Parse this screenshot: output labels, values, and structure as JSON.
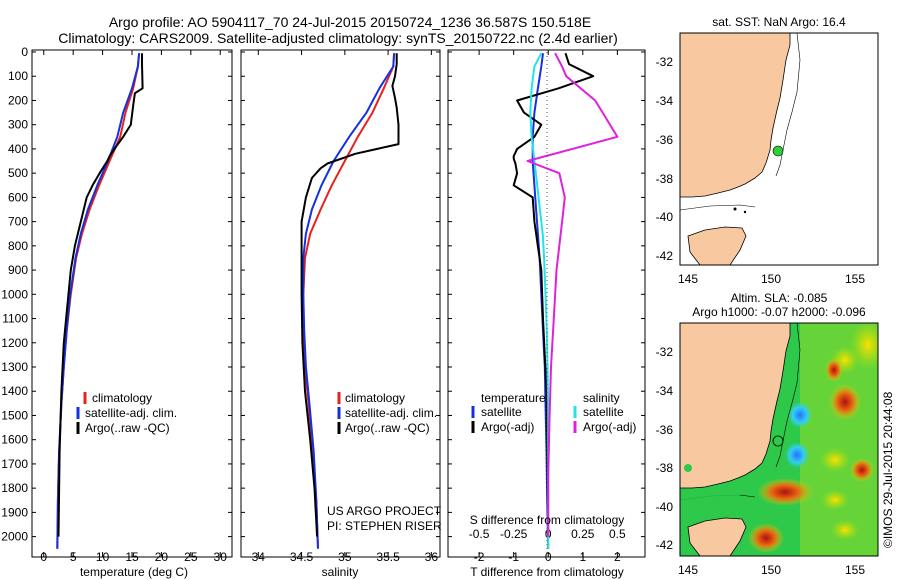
{
  "header": {
    "line1": "Argo profile: AO 5904117_70 24-Jul-2015 20150724_1236 36.587S 150.518E",
    "line2": "Climatology: CARS2009. Satellite-adjusted climatology: synTS_20150722.nc (2.4d earlier)"
  },
  "colors": {
    "climatology": "#e8211b",
    "satellite": "#1530e0",
    "argo": "#000000",
    "sat_salinity": "#22e3e8",
    "argo_salinity": "#e020e0",
    "land": "#f8c9a0"
  },
  "chart_data": [
    {
      "id": "temperature",
      "type": "line",
      "xlabel": "temperature (deg C)",
      "ylabel": "",
      "xlim": [
        -2,
        32
      ],
      "ylim": [
        2080,
        0
      ],
      "xticks": [
        0,
        5,
        10,
        15,
        20,
        25,
        30
      ],
      "yticks": [
        0,
        100,
        200,
        300,
        400,
        500,
        600,
        700,
        800,
        900,
        1000,
        1100,
        1200,
        1300,
        1400,
        1500,
        1600,
        1700,
        1800,
        1900,
        2000
      ],
      "legend": [
        "climatology",
        "satellite-adj. clim.",
        "Argo(..raw -QC)"
      ],
      "series": [
        {
          "name": "climatology",
          "color": "#e8211b",
          "x": [
            16.2,
            16.0,
            15.2,
            13.9,
            13.0,
            11.2,
            9.4,
            7.8,
            6.5,
            5.5,
            4.6,
            3.9,
            3.4,
            3.0,
            2.6,
            2.4,
            2.3
          ],
          "y": [
            5,
            60,
            150,
            250,
            350,
            450,
            550,
            650,
            750,
            850,
            1000,
            1150,
            1300,
            1450,
            1650,
            1850,
            2050
          ]
        },
        {
          "name": "satellite-adj. clim.",
          "color": "#1530e0",
          "x": [
            16.2,
            16.0,
            15.0,
            13.5,
            12.5,
            10.9,
            9.1,
            7.5,
            6.3,
            5.4,
            4.5,
            3.9,
            3.4,
            3.0,
            2.6,
            2.4,
            2.3
          ],
          "y": [
            5,
            60,
            150,
            250,
            350,
            450,
            550,
            650,
            750,
            850,
            1000,
            1150,
            1300,
            1450,
            1650,
            1850,
            2050
          ]
        },
        {
          "name": "Argo(..raw -QC)",
          "color": "#000000",
          "x": [
            16.7,
            16.7,
            16.8,
            15.5,
            15.2,
            14.8,
            13.5,
            12.0,
            11.2,
            10.8,
            9.5,
            8.3,
            7.3,
            6.3,
            5.3,
            4.6,
            4.0,
            3.4,
            3.0,
            2.7,
            2.5
          ],
          "y": [
            5,
            50,
            150,
            170,
            220,
            300,
            350,
            400,
            430,
            450,
            500,
            550,
            600,
            700,
            800,
            900,
            1050,
            1200,
            1400,
            1650,
            2000
          ]
        }
      ]
    },
    {
      "id": "salinity",
      "type": "line",
      "xlabel": "salinity",
      "xlim": [
        33.8,
        36.1
      ],
      "xticks": [
        34,
        34.5,
        35,
        35.5,
        36
      ],
      "ylim": [
        2080,
        0
      ],
      "legend": [
        "climatology",
        "satellite-adj. clim.",
        "Argo(..raw -QC)"
      ],
      "annotations": [
        "US ARGO PROJECT",
        "PI: STEPHEN RISER"
      ],
      "series": [
        {
          "name": "climatology",
          "color": "#e8211b",
          "x": [
            35.57,
            35.56,
            35.45,
            35.32,
            35.15,
            35.0,
            34.85,
            34.72,
            34.6,
            34.54,
            34.52,
            34.52,
            34.54,
            34.58,
            34.63,
            34.67,
            34.69
          ],
          "y": [
            5,
            60,
            150,
            250,
            350,
            450,
            550,
            650,
            750,
            850,
            1000,
            1150,
            1300,
            1450,
            1650,
            1850,
            2050
          ]
        },
        {
          "name": "satellite-adj. clim.",
          "color": "#1530e0",
          "x": [
            35.57,
            35.56,
            35.4,
            35.25,
            35.05,
            34.87,
            34.73,
            34.62,
            34.55,
            34.52,
            34.52,
            34.53,
            34.55,
            34.59,
            34.64,
            34.67,
            34.69
          ],
          "y": [
            5,
            60,
            150,
            250,
            350,
            450,
            550,
            650,
            750,
            850,
            1000,
            1150,
            1300,
            1450,
            1650,
            1850,
            2050
          ]
        },
        {
          "name": "Argo(..raw -QC)",
          "color": "#000000",
          "x": [
            35.6,
            35.6,
            35.58,
            35.55,
            35.58,
            35.6,
            35.62,
            35.62,
            35.12,
            34.8,
            34.72,
            34.62,
            34.55,
            34.5,
            34.5,
            34.5,
            34.51,
            34.54,
            34.6,
            34.65,
            34.68
          ],
          "y": [
            5,
            50,
            100,
            140,
            190,
            230,
            300,
            380,
            420,
            460,
            480,
            520,
            600,
            700,
            800,
            1000,
            1200,
            1400,
            1600,
            1800,
            2000
          ]
        }
      ]
    },
    {
      "id": "difference",
      "type": "line",
      "xlabel": "T difference from climatology",
      "xlabel_top": "S difference from climatology",
      "xlim": [
        -2.9,
        2.8
      ],
      "xticks": [
        -2,
        -1,
        0,
        1,
        2
      ],
      "xticks_top": [
        "-0.5",
        "-0.25",
        "0",
        "0.25",
        "0.5"
      ],
      "ylim": [
        2080,
        0
      ],
      "legend_titles": [
        "temperature",
        "salinity"
      ],
      "legend": [
        "satellite",
        "Argo(-adj)",
        "satellite",
        "Argo(-adj)"
      ],
      "series": [
        {
          "name": "temperature satellite",
          "color": "#1530e0",
          "x": [
            -0.15,
            -0.2,
            -0.3,
            -0.4,
            -0.45,
            -0.45,
            -0.4,
            -0.35,
            -0.3,
            -0.25,
            -0.2,
            -0.15,
            -0.1,
            -0.08,
            -0.05,
            -0.03,
            0.0
          ],
          "y": [
            5,
            60,
            150,
            250,
            350,
            450,
            550,
            650,
            750,
            850,
            1000,
            1150,
            1300,
            1450,
            1650,
            1850,
            2050
          ]
        },
        {
          "name": "temperature Argo(-adj)",
          "color": "#000000",
          "x": [
            0.5,
            0.6,
            1.3,
            0.3,
            -0.9,
            -0.7,
            -0.2,
            -0.4,
            -0.9,
            -1.0,
            -1.0,
            -0.95,
            -0.9,
            -1.0,
            -0.45,
            -0.4,
            -0.2,
            -0.15,
            -0.05,
            -0.02,
            0.0
          ],
          "y": [
            5,
            50,
            100,
            150,
            200,
            250,
            300,
            350,
            400,
            430,
            440,
            460,
            500,
            550,
            600,
            700,
            900,
            1100,
            1400,
            1700,
            2000
          ]
        },
        {
          "name": "salinity satellite",
          "color": "#22e3e8",
          "x": [
            -0.05,
            -0.1,
            -0.12,
            -0.13,
            -0.12,
            -0.1,
            -0.08,
            -0.06,
            -0.04,
            -0.03,
            -0.02,
            -0.01,
            -0.005,
            0.0,
            0.0,
            0.0,
            0.0
          ],
          "y": [
            5,
            60,
            150,
            250,
            350,
            450,
            550,
            650,
            750,
            850,
            1000,
            1150,
            1300,
            1450,
            1650,
            1850,
            2050
          ]
        },
        {
          "name": "salinity Argo(-adj)",
          "color": "#e020e0",
          "x": [
            0.05,
            0.1,
            0.13,
            0.34,
            0.5,
            -0.15,
            0.08,
            0.12,
            0.1,
            0.06,
            0.04,
            0.02,
            0.01,
            0.0,
            0.0
          ],
          "y": [
            5,
            60,
            100,
            200,
            350,
            450,
            500,
            600,
            700,
            900,
            1100,
            1300,
            1500,
            1750,
            2000
          ]
        }
      ]
    }
  ],
  "map_top": {
    "title": "sat. SST: NaN Argo: 16.4",
    "xticks": [
      "145",
      "150",
      "155"
    ],
    "yticks": [
      "-32",
      "-34",
      "-36",
      "-38",
      "-40",
      "-42"
    ]
  },
  "map_bottom": {
    "title1": "Altim. SLA: -0.085",
    "title2": "Argo h1000: -0.07 h2000: -0.096",
    "xticks": [
      "145",
      "150",
      "155"
    ],
    "yticks": [
      "-32",
      "-34",
      "-36",
      "-38",
      "-40",
      "-42"
    ]
  },
  "side_label": "©IMOS 29-Jul-2015 20:44:08"
}
